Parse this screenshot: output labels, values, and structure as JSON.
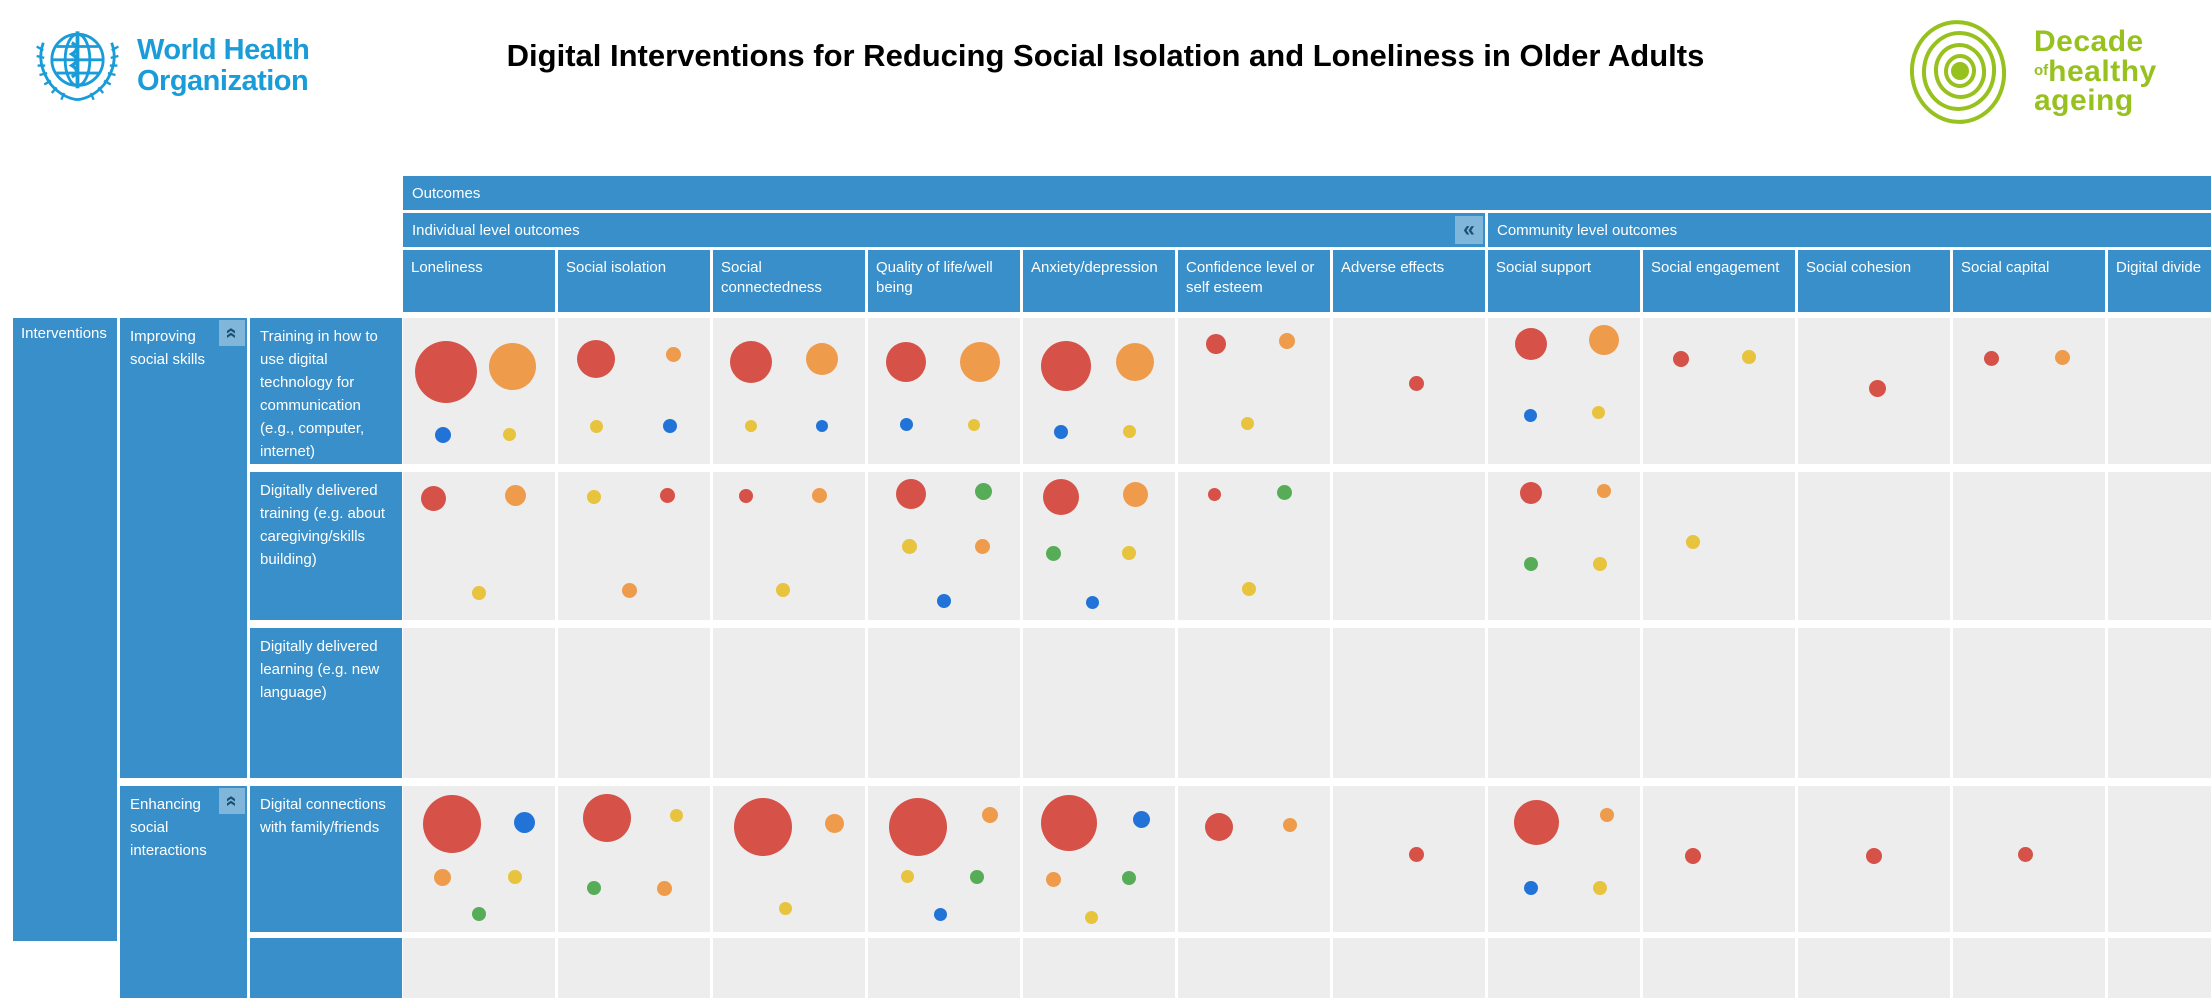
{
  "header": {
    "who_line1": "World Health",
    "who_line2": "Organization",
    "title": "Digital Interventions for Reducing Social Isolation and Loneliness in Older Adults",
    "decade": {
      "word1": "Decade",
      "of": "of",
      "word2": "healthy",
      "word3": "ageing"
    }
  },
  "icons": {
    "collapse_left": "«",
    "collapse_up": "«",
    "who_emblem": "who-emblem-icon",
    "decade_emblem": "decade-healthy-ageing-icon"
  },
  "colors": {
    "red": "#d65147",
    "orange": "#ee9b4c",
    "yellow": "#e7c33e",
    "blue": "#2273d8",
    "green": "#57ad57",
    "header_blue": "#388fc9",
    "cell_bg": "#ededed",
    "who_blue": "#1a9cd8",
    "decade_green": "#97c11e"
  },
  "matrix": {
    "corner_label": "Interventions",
    "outcomes_label": "Outcomes",
    "individual_band_label": "Individual level outcomes",
    "community_band_label": "Community level outcomes",
    "columns": [
      {
        "id": "loneliness",
        "label": "Loneliness",
        "band": "individual"
      },
      {
        "id": "social_isolation",
        "label": "Social isolation",
        "band": "individual"
      },
      {
        "id": "social_connectedness",
        "label": "Social connectedness",
        "band": "individual"
      },
      {
        "id": "qol",
        "label": "Quality of life/well being",
        "band": "individual"
      },
      {
        "id": "anxiety",
        "label": "Anxiety/depression",
        "band": "individual"
      },
      {
        "id": "confidence",
        "label": "Confidence level or self esteem",
        "band": "individual"
      },
      {
        "id": "adverse",
        "label": "Adverse effects",
        "band": "individual"
      },
      {
        "id": "social_support",
        "label": "Social support",
        "band": "community"
      },
      {
        "id": "social_engagement",
        "label": "Social engagement",
        "band": "community"
      },
      {
        "id": "social_cohesion",
        "label": "Social cohesion",
        "band": "community"
      },
      {
        "id": "social_capital",
        "label": "Social capital",
        "band": "community"
      },
      {
        "id": "digital_divide",
        "label": "Digital divide",
        "band": "community"
      }
    ],
    "row_groups": [
      {
        "label": "Improving social skills"
      },
      {
        "label": "Enhancing social interactions"
      }
    ],
    "rows": [
      {
        "label": "Training in how to use digital technology for communication (e.g., computer, internet)",
        "group": 0,
        "cells": {
          "loneliness": [
            [
              "red",
              62,
              28,
              37
            ],
            [
              "orange",
              47,
              72,
              33
            ],
            [
              "blue",
              16,
              26,
              80
            ],
            [
              "yellow",
              13,
              70,
              80
            ]
          ],
          "social_isolation": [
            [
              "red",
              38,
              25,
              28
            ],
            [
              "orange",
              15,
              76,
              25
            ],
            [
              "yellow",
              13,
              25,
              74
            ],
            [
              "blue",
              14,
              74,
              74
            ]
          ],
          "social_connectedness": [
            [
              "red",
              42,
              25,
              30
            ],
            [
              "orange",
              32,
              72,
              28
            ],
            [
              "yellow",
              12,
              25,
              74
            ],
            [
              "blue",
              12,
              72,
              74
            ]
          ],
          "qol": [
            [
              "red",
              40,
              25,
              30
            ],
            [
              "orange",
              40,
              74,
              30
            ],
            [
              "blue",
              13,
              25,
              73
            ],
            [
              "yellow",
              12,
              70,
              73
            ]
          ],
          "anxiety": [
            [
              "red",
              50,
              28,
              33
            ],
            [
              "orange",
              38,
              74,
              30
            ],
            [
              "blue",
              14,
              25,
              78
            ],
            [
              "yellow",
              13,
              70,
              78
            ]
          ],
          "confidence": [
            [
              "red",
              20,
              25,
              18
            ],
            [
              "orange",
              16,
              72,
              16
            ],
            [
              "yellow",
              13,
              46,
              72
            ]
          ],
          "adverse": [
            [
              "red",
              15,
              55,
              45
            ]
          ],
          "social_support": [
            [
              "red",
              32,
              28,
              18
            ],
            [
              "orange",
              30,
              76,
              15
            ],
            [
              "blue",
              13,
              28,
              67
            ],
            [
              "yellow",
              13,
              73,
              65
            ]
          ],
          "social_engagement": [
            [
              "red",
              16,
              25,
              28
            ],
            [
              "yellow",
              14,
              70,
              27
            ]
          ],
          "social_cohesion": [
            [
              "red",
              17,
              52,
              48
            ]
          ],
          "social_capital": [
            [
              "red",
              15,
              25,
              28
            ],
            [
              "orange",
              15,
              72,
              27
            ]
          ],
          "digital_divide": []
        }
      },
      {
        "label": "Digitally delivered training (e.g. about caregiving/skills building)",
        "group": 0,
        "cells": {
          "loneliness": [
            [
              "red",
              25,
              20,
              18
            ],
            [
              "orange",
              21,
              74,
              16
            ],
            [
              "yellow",
              14,
              50,
              82
            ]
          ],
          "social_isolation": [
            [
              "yellow",
              14,
              24,
              17
            ],
            [
              "red",
              15,
              72,
              16
            ],
            [
              "orange",
              15,
              47,
              80
            ]
          ],
          "social_connectedness": [
            [
              "red",
              14,
              22,
              16
            ],
            [
              "orange",
              15,
              70,
              16
            ],
            [
              "yellow",
              14,
              46,
              80
            ]
          ],
          "qol": [
            [
              "red",
              30,
              28,
              15
            ],
            [
              "green",
              17,
              76,
              13
            ],
            [
              "yellow",
              15,
              27,
              50
            ],
            [
              "orange",
              15,
              75,
              50
            ],
            [
              "blue",
              14,
              50,
              87
            ]
          ],
          "anxiety": [
            [
              "red",
              36,
              25,
              17
            ],
            [
              "orange",
              25,
              74,
              15
            ],
            [
              "green",
              15,
              20,
              55
            ],
            [
              "yellow",
              14,
              70,
              55
            ],
            [
              "blue",
              13,
              46,
              88
            ]
          ],
          "confidence": [
            [
              "red",
              13,
              24,
              15
            ],
            [
              "green",
              15,
              70,
              14
            ],
            [
              "yellow",
              14,
              47,
              79
            ]
          ],
          "adverse": [],
          "social_support": [
            [
              "red",
              22,
              28,
              14
            ],
            [
              "orange",
              14,
              76,
              13
            ],
            [
              "green",
              14,
              28,
              62
            ],
            [
              "yellow",
              14,
              74,
              62
            ]
          ],
          "social_engagement": [
            [
              "yellow",
              14,
              33,
              47
            ]
          ],
          "social_cohesion": [],
          "social_capital": [],
          "digital_divide": []
        }
      },
      {
        "label": "Digitally delivered learning (e.g. new language)",
        "group": 0,
        "cells": {}
      },
      {
        "label": "Digital connections with family/friends",
        "group": 1,
        "cells": {
          "loneliness": [
            [
              "red",
              58,
              32,
              26
            ],
            [
              "blue",
              21,
              80,
              25
            ],
            [
              "orange",
              17,
              26,
              63
            ],
            [
              "yellow",
              14,
              74,
              62
            ],
            [
              "green",
              14,
              50,
              88
            ]
          ],
          "social_isolation": [
            [
              "red",
              48,
              32,
              22
            ],
            [
              "yellow",
              13,
              78,
              20
            ],
            [
              "green",
              14,
              24,
              70
            ],
            [
              "orange",
              15,
              70,
              70
            ]
          ],
          "social_connectedness": [
            [
              "red",
              58,
              33,
              28
            ],
            [
              "orange",
              19,
              80,
              26
            ],
            [
              "yellow",
              13,
              48,
              84
            ]
          ],
          "qol": [
            [
              "red",
              58,
              33,
              28
            ],
            [
              "orange",
              16,
              80,
              20
            ],
            [
              "yellow",
              13,
              26,
              62
            ],
            [
              "green",
              14,
              72,
              62
            ],
            [
              "blue",
              13,
              48,
              88
            ]
          ],
          "anxiety": [
            [
              "red",
              56,
              30,
              25
            ],
            [
              "blue",
              17,
              78,
              23
            ],
            [
              "orange",
              15,
              20,
              64
            ],
            [
              "green",
              14,
              70,
              63
            ],
            [
              "yellow",
              13,
              45,
              90
            ]
          ],
          "confidence": [
            [
              "red",
              28,
              27,
              28
            ],
            [
              "orange",
              14,
              74,
              27
            ]
          ],
          "adverse": [
            [
              "red",
              15,
              55,
              47
            ]
          ],
          "social_support": [
            [
              "red",
              45,
              32,
              25
            ],
            [
              "orange",
              14,
              78,
              20
            ],
            [
              "blue",
              14,
              28,
              70
            ],
            [
              "yellow",
              14,
              74,
              70
            ]
          ],
          "social_engagement": [
            [
              "red",
              16,
              33,
              48
            ]
          ],
          "social_cohesion": [
            [
              "red",
              16,
              50,
              48
            ]
          ],
          "social_capital": [
            [
              "red",
              15,
              48,
              47
            ]
          ],
          "digital_divide": []
        }
      },
      {
        "label": "",
        "group": 1,
        "cells": {}
      }
    ]
  }
}
